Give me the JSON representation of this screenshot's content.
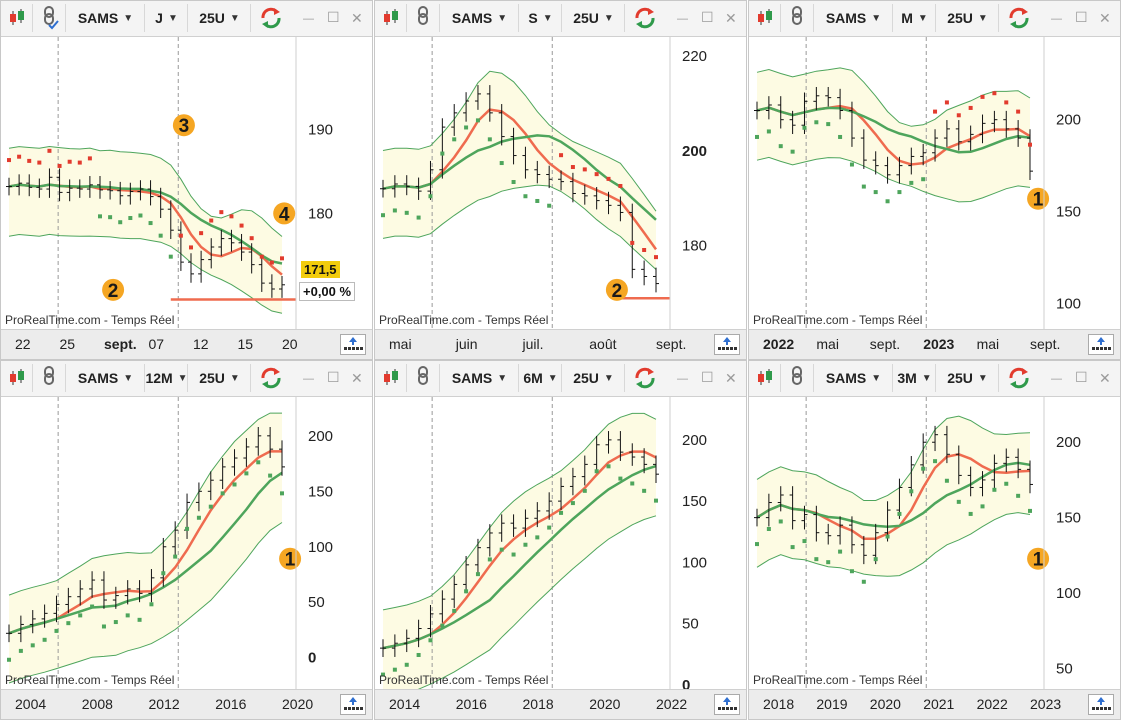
{
  "app": {
    "watermark": "ProRealTime.com - Temps Réel",
    "colors": {
      "bull": "#2f9a4b",
      "bear": "#e23b2e",
      "bar": "#111111",
      "band_fill": "#fdfbe3",
      "ma_red": "#ef6b4f",
      "ma_green": "#4ea55c",
      "badge_yellow": "#f2cc0c",
      "badge_orange": "#f5a623"
    },
    "icons": [
      "candlestick-icon",
      "link-icon",
      "chevron-down-icon",
      "refresh-icon",
      "minimize-icon",
      "maximize-icon",
      "close-icon",
      "upload-icon",
      "keyboard-icon"
    ]
  },
  "panels": [
    {
      "ticker": "SAMS",
      "timeframe": "J",
      "bars": "25U",
      "price_ticks": [
        "190",
        "180"
      ],
      "price_ticks_bold": [],
      "x_ticks": [
        "22",
        "25",
        "sept.",
        "07",
        "12",
        "15",
        "20"
      ],
      "x_ticks_bold": [
        "sept."
      ],
      "markers": [
        "3",
        "4",
        "2"
      ],
      "price_label": "171,5",
      "change_label": "+0,00 %",
      "chart_data": {
        "type": "ohlc",
        "title": "",
        "x_labels": [
          "22",
          "25",
          "sept.",
          "07",
          "12",
          "15",
          "20"
        ],
        "y_ticks": [
          190,
          180
        ],
        "ylim": [
          166,
          201
        ],
        "close": [
          183.2,
          183.6,
          183.1,
          182.9,
          184.3,
          182.5,
          183.0,
          182.9,
          183.4,
          182.8,
          182.7,
          182.1,
          182.6,
          182.9,
          182.0,
          180.5,
          178.0,
          174.2,
          172.8,
          174.5,
          176.0,
          177.0,
          176.5,
          175.4,
          173.9,
          171.7,
          171.0,
          171.5
        ],
        "overlays": [
          "upper band",
          "moving average",
          "lower band",
          "parabolic SAR"
        ]
      }
    },
    {
      "ticker": "SAMS",
      "timeframe": "S",
      "bars": "25U",
      "price_ticks": [
        "220",
        "200",
        "180"
      ],
      "price_ticks_bold": [
        "200"
      ],
      "x_ticks": [
        "mai",
        "juin",
        "juil.",
        "août",
        "sept."
      ],
      "x_ticks_bold": [],
      "markers": [
        "2"
      ],
      "chart_data": {
        "type": "ohlc",
        "title": "",
        "x_labels": [
          "mai",
          "juin",
          "juil.",
          "août",
          "sept."
        ],
        "y_ticks": [
          220,
          200,
          180
        ],
        "ylim": [
          162,
          224
        ],
        "close": [
          192.0,
          193.0,
          192.5,
          191.5,
          196.0,
          205.0,
          208.0,
          210.5,
          212.0,
          208.0,
          203.0,
          199.0,
          196.0,
          195.0,
          194.0,
          193.5,
          191.0,
          190.5,
          189.5,
          188.5,
          187.0,
          175.0,
          173.5,
          172.0
        ],
        "overlays": [
          "upper band",
          "moving average",
          "lower band",
          "parabolic SAR"
        ]
      }
    },
    {
      "ticker": "SAMS",
      "timeframe": "M",
      "bars": "25U",
      "price_ticks": [
        "200",
        "150",
        "100"
      ],
      "price_ticks_bold": [],
      "x_ticks": [
        "2022",
        "mai",
        "sept.",
        "2023",
        "mai",
        "sept."
      ],
      "x_ticks_bold": [
        "2022",
        "2023"
      ],
      "markers": [
        "1"
      ],
      "chart_data": {
        "type": "ohlc",
        "title": "",
        "x_labels": [
          "2022",
          "mai",
          "sept.",
          "2023",
          "mai",
          "sept."
        ],
        "y_ticks": [
          200,
          150,
          100
        ],
        "ylim": [
          85,
          245
        ],
        "close": [
          205,
          208,
          200,
          197,
          210,
          213,
          212,
          205,
          190,
          178,
          175,
          170,
          175,
          180,
          182,
          190,
          195,
          188,
          192,
          198,
          200,
          195,
          190,
          172
        ],
        "overlays": [
          "upper band",
          "moving average",
          "lower band",
          "parabolic SAR"
        ]
      }
    },
    {
      "ticker": "SAMS",
      "timeframe": "12M",
      "bars": "25U",
      "price_ticks": [
        "200",
        "150",
        "100",
        "50",
        "0"
      ],
      "price_ticks_bold": [
        "0"
      ],
      "x_ticks": [
        "2004",
        "2008",
        "2012",
        "2016",
        "2020"
      ],
      "x_ticks_bold": [],
      "markers": [
        "1"
      ],
      "chart_data": {
        "type": "ohlc",
        "title": "",
        "x_labels": [
          "2004",
          "2008",
          "2012",
          "2016",
          "2020"
        ],
        "y_ticks": [
          200,
          150,
          100,
          50,
          0
        ],
        "ylim": [
          -30,
          235
        ],
        "close": [
          22,
          30,
          35,
          40,
          48,
          55,
          62,
          70,
          52,
          56,
          62,
          58,
          72,
          100,
          115,
          140,
          150,
          160,
          172,
          180,
          190,
          200,
          188,
          172
        ],
        "overlays": [
          "upper band",
          "moving average",
          "lower band",
          "parabolic SAR"
        ]
      }
    },
    {
      "ticker": "SAMS",
      "timeframe": "6M",
      "bars": "25U",
      "price_ticks": [
        "200",
        "150",
        "100",
        "50",
        "0"
      ],
      "price_ticks_bold": [
        "0"
      ],
      "x_ticks": [
        "2014",
        "2016",
        "2018",
        "2020",
        "2022"
      ],
      "x_ticks_bold": [],
      "markers": [],
      "chart_data": {
        "type": "ohlc",
        "title": "",
        "x_labels": [
          "2014",
          "2016",
          "2018",
          "2020",
          "2022"
        ],
        "y_ticks": [
          200,
          150,
          100,
          50,
          0
        ],
        "ylim": [
          -5,
          235
        ],
        "close": [
          30,
          34,
          38,
          46,
          58,
          70,
          82,
          98,
          112,
          124,
          132,
          128,
          136,
          142,
          150,
          162,
          170,
          180,
          196,
          200,
          190,
          186,
          180,
          172
        ],
        "overlays": [
          "upper band",
          "moving average",
          "lower band",
          "parabolic SAR"
        ]
      }
    },
    {
      "ticker": "SAMS",
      "timeframe": "3M",
      "bars": "25U",
      "price_ticks": [
        "200",
        "150",
        "100",
        "50"
      ],
      "price_ticks_bold": [],
      "x_ticks": [
        "2018",
        "2019",
        "2020",
        "2021",
        "2022",
        "2023"
      ],
      "x_ticks_bold": [],
      "markers": [
        "1"
      ],
      "chart_data": {
        "type": "ohlc",
        "title": "",
        "x_labels": [
          "2018",
          "2019",
          "2020",
          "2021",
          "2022",
          "2023"
        ],
        "y_ticks": [
          200,
          150,
          100,
          50
        ],
        "ylim": [
          35,
          230
        ],
        "close": [
          150,
          160,
          165,
          148,
          152,
          140,
          138,
          145,
          132,
          125,
          140,
          155,
          170,
          185,
          200,
          205,
          192,
          178,
          170,
          175,
          186,
          190,
          182,
          172
        ],
        "overlays": [
          "upper band",
          "moving average",
          "lower band",
          "parabolic SAR"
        ]
      }
    }
  ]
}
